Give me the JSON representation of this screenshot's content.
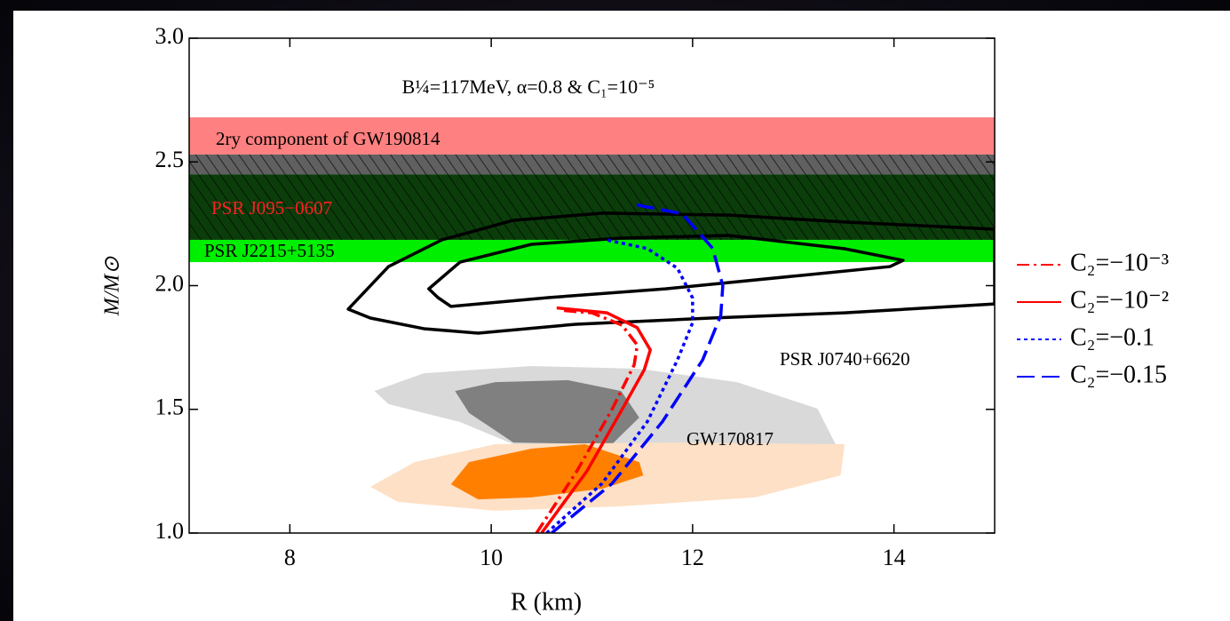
{
  "chart_data": {
    "type": "line",
    "title": "B¼=117MeV, α=0.8 & C₁=10⁻⁵",
    "xlabel": "R (km)",
    "ylabel": "M/M⊙",
    "xlim": [
      7,
      15
    ],
    "ylim": [
      1,
      3
    ],
    "xticks": [
      8,
      10,
      12,
      14
    ],
    "yticks": [
      {
        "value": 1,
        "label": "1.0"
      },
      1.5,
      {
        "value": 2,
        "label": "2.0"
      },
      2.5,
      {
        "value": 3,
        "label": "3.0"
      }
    ],
    "bands": [
      {
        "label": "2ry component of GW190814",
        "ylim": [
          2.53,
          2.68
        ],
        "color": "#ff8080",
        "hatch": false,
        "label_color": "#000000"
      },
      {
        "ylim": [
          2.45,
          2.53
        ],
        "color": "#606060",
        "hatch": true
      },
      {
        "label": "PSR J095−0607",
        "ylim": [
          2.185,
          2.45
        ],
        "color": "#0b3d0b",
        "hatch": true,
        "label_color": "#ff2020"
      },
      {
        "label": "PSR J2215+5135",
        "ylim": [
          2.095,
          2.185
        ],
        "color": "#00ee00",
        "hatch": false,
        "label_color": "#000000"
      }
    ],
    "regions": [
      {
        "color": "#d9d9d9",
        "x": [
          8.84,
          9.33,
          10.4,
          11.47,
          12.44,
          13.24,
          13.42,
          10.22,
          9.69,
          8.98
        ],
        "y": [
          1.574,
          1.646,
          1.675,
          1.664,
          1.61,
          1.503,
          1.359,
          1.359,
          1.449,
          1.521
        ]
      },
      {
        "color": "#808080",
        "x": [
          9.64,
          10.04,
          10.76,
          11.29,
          11.47,
          11.2,
          10.22,
          9.78
        ],
        "y": [
          1.574,
          1.61,
          1.618,
          1.574,
          1.467,
          1.359,
          1.366,
          1.485
        ]
      },
      {
        "color": "#fde0c5",
        "x": [
          8.8,
          9.24,
          10.04,
          11.82,
          13.51,
          13.47,
          12.62,
          11.29,
          10.04,
          9.07
        ],
        "y": [
          1.187,
          1.287,
          1.359,
          1.366,
          1.359,
          1.233,
          1.144,
          1.108,
          1.09,
          1.126
        ]
      },
      {
        "color": "#ff8000",
        "x": [
          9.6,
          9.78,
          10.4,
          10.93,
          11.47,
          11.51,
          11.11,
          10.4,
          9.87
        ],
        "y": [
          1.197,
          1.287,
          1.341,
          1.359,
          1.287,
          1.233,
          1.18,
          1.144,
          1.136
        ]
      }
    ],
    "contours": [
      {
        "color": "#000000",
        "x": [
          8.58,
          8.98,
          9.51,
          10.22,
          11.11,
          12.36,
          13.51,
          15,
          15,
          13.51,
          12.18,
          10.84,
          9.87,
          9.33,
          8.8
        ],
        "y": [
          1.905,
          2.077,
          2.185,
          2.264,
          2.293,
          2.285,
          2.257,
          2.228,
          1.926,
          1.89,
          1.869,
          1.844,
          1.808,
          1.826,
          1.869
        ]
      },
      {
        "color": "#000000",
        "x": [
          9.38,
          9.69,
          10.4,
          11.29,
          12.36,
          13.51,
          14.09,
          13.96,
          13.07,
          11.73,
          10.58,
          9.6,
          9.47
        ],
        "y": [
          1.987,
          2.095,
          2.167,
          2.192,
          2.203,
          2.149,
          2.102,
          2.077,
          2.041,
          1.987,
          1.952,
          1.916,
          1.952
        ]
      }
    ],
    "annotations": [
      "PSR J0740+6620",
      "GW170817"
    ],
    "series": [
      {
        "name": "C₂=−10⁻³",
        "color": "#ff0000",
        "dash": "dashdot",
        "x": [
          10.45,
          10.85,
          11.2,
          11.42,
          11.45,
          11.3,
          11.0,
          10.7
        ],
        "y": [
          1.0,
          1.25,
          1.5,
          1.68,
          1.76,
          1.84,
          1.89,
          1.9
        ]
      },
      {
        "name": "C₂=−10⁻²",
        "color": "#ff0000",
        "dash": "solid",
        "x": [
          10.5,
          10.95,
          11.3,
          11.52,
          11.58,
          11.45,
          11.15,
          10.65
        ],
        "y": [
          1.0,
          1.25,
          1.5,
          1.66,
          1.74,
          1.83,
          1.89,
          1.91
        ]
      },
      {
        "name": "C₂=−0.1",
        "color": "#0000ff",
        "dash": "dotted",
        "x": [
          10.55,
          11.1,
          11.55,
          11.85,
          12.0,
          12.0,
          11.85,
          11.55,
          11.14
        ],
        "y": [
          1.0,
          1.2,
          1.45,
          1.7,
          1.85,
          1.95,
          2.07,
          2.15,
          2.185
        ]
      },
      {
        "name": "C₂=−0.15",
        "color": "#0000ff",
        "dash": "dashed",
        "x": [
          10.6,
          11.2,
          11.7,
          12.1,
          12.28,
          12.3,
          12.2,
          11.9,
          11.4
        ],
        "y": [
          1.0,
          1.2,
          1.45,
          1.7,
          1.88,
          2.0,
          2.15,
          2.29,
          2.33
        ]
      }
    ]
  }
}
